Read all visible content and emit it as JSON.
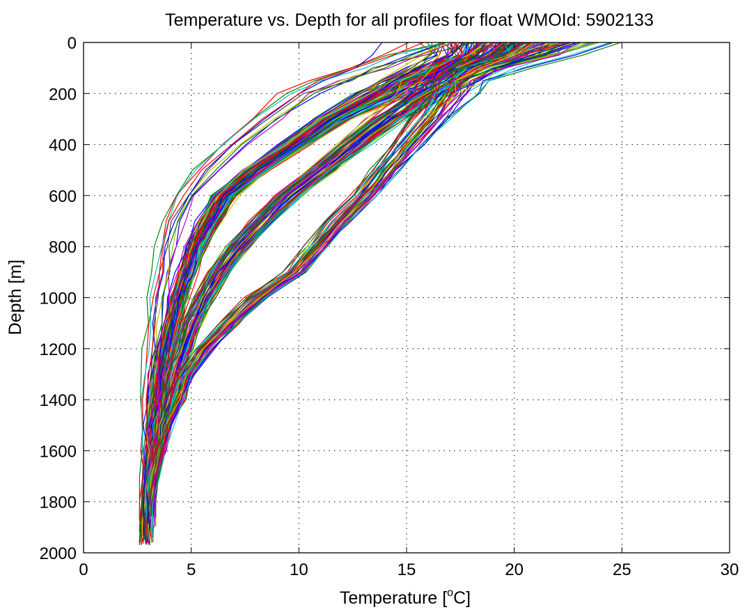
{
  "chart_data": {
    "type": "line",
    "title": "Temperature vs. Depth for all profiles for float WMOId: 5902133",
    "xlabel": "Temperature [",
    "xlabel_sup": "o",
    "xlabel_unit": "C]",
    "ylabel": "Depth [m]",
    "xlim": [
      0,
      30
    ],
    "ylim": [
      0,
      2000
    ],
    "y_reversed": true,
    "grid": true,
    "x_ticks": [
      "0",
      "5",
      "10",
      "15",
      "20",
      "25",
      "30"
    ],
    "y_ticks": [
      "0",
      "200",
      "400",
      "600",
      "800",
      "1000",
      "1200",
      "1400",
      "1600",
      "1800",
      "2000"
    ],
    "series_colors": [
      "#0000ff",
      "#008000",
      "#ff0000",
      "#00bfbf",
      "#bf00bf",
      "#bfbf00",
      "#404040"
    ],
    "profile_count": 220,
    "depth_levels": [
      0,
      50,
      100,
      150,
      200,
      300,
      400,
      500,
      600,
      700,
      800,
      900,
      1000,
      1100,
      1200,
      1300,
      1400,
      1500,
      1600,
      1700,
      1800,
      1900,
      1950
    ],
    "profile_groups": [
      {
        "name": "",
        "count": 95,
        "temps": [
          18.5,
          18.0,
          16.5,
          15.0,
          13.8,
          11.5,
          9.8,
          8.0,
          6.5,
          5.8,
          5.2,
          4.8,
          4.4,
          4.1,
          3.8,
          3.6,
          3.4,
          3.25,
          3.1,
          3.0,
          2.95,
          2.85,
          2.8
        ]
      },
      {
        "name": "",
        "count": 70,
        "temps": [
          20.0,
          19.0,
          17.5,
          16.5,
          15.8,
          14.0,
          12.5,
          11.0,
          9.5,
          8.3,
          7.2,
          6.3,
          5.6,
          5.0,
          4.6,
          4.2,
          3.9,
          3.65,
          3.45,
          3.25,
          3.1,
          3.0,
          2.95
        ]
      },
      {
        "name": "",
        "count": 45,
        "temps": [
          21.5,
          20.5,
          18.5,
          17.5,
          17.0,
          16.0,
          15.0,
          14.0,
          13.0,
          11.8,
          10.8,
          9.8,
          8.0,
          6.8,
          5.6,
          4.8,
          4.3,
          3.9,
          3.6,
          3.3,
          3.1,
          3.0,
          2.95
        ]
      },
      {
        "name": "",
        "count": 10,
        "temps": [
          16.0,
          14.5,
          13.0,
          11.5,
          10.0,
          8.5,
          7.0,
          5.8,
          4.8,
          4.2,
          3.9,
          3.7,
          3.5,
          3.35,
          3.2,
          3.1,
          3.0,
          2.9,
          2.85,
          2.8,
          2.75,
          2.7,
          2.7
        ]
      }
    ]
  }
}
